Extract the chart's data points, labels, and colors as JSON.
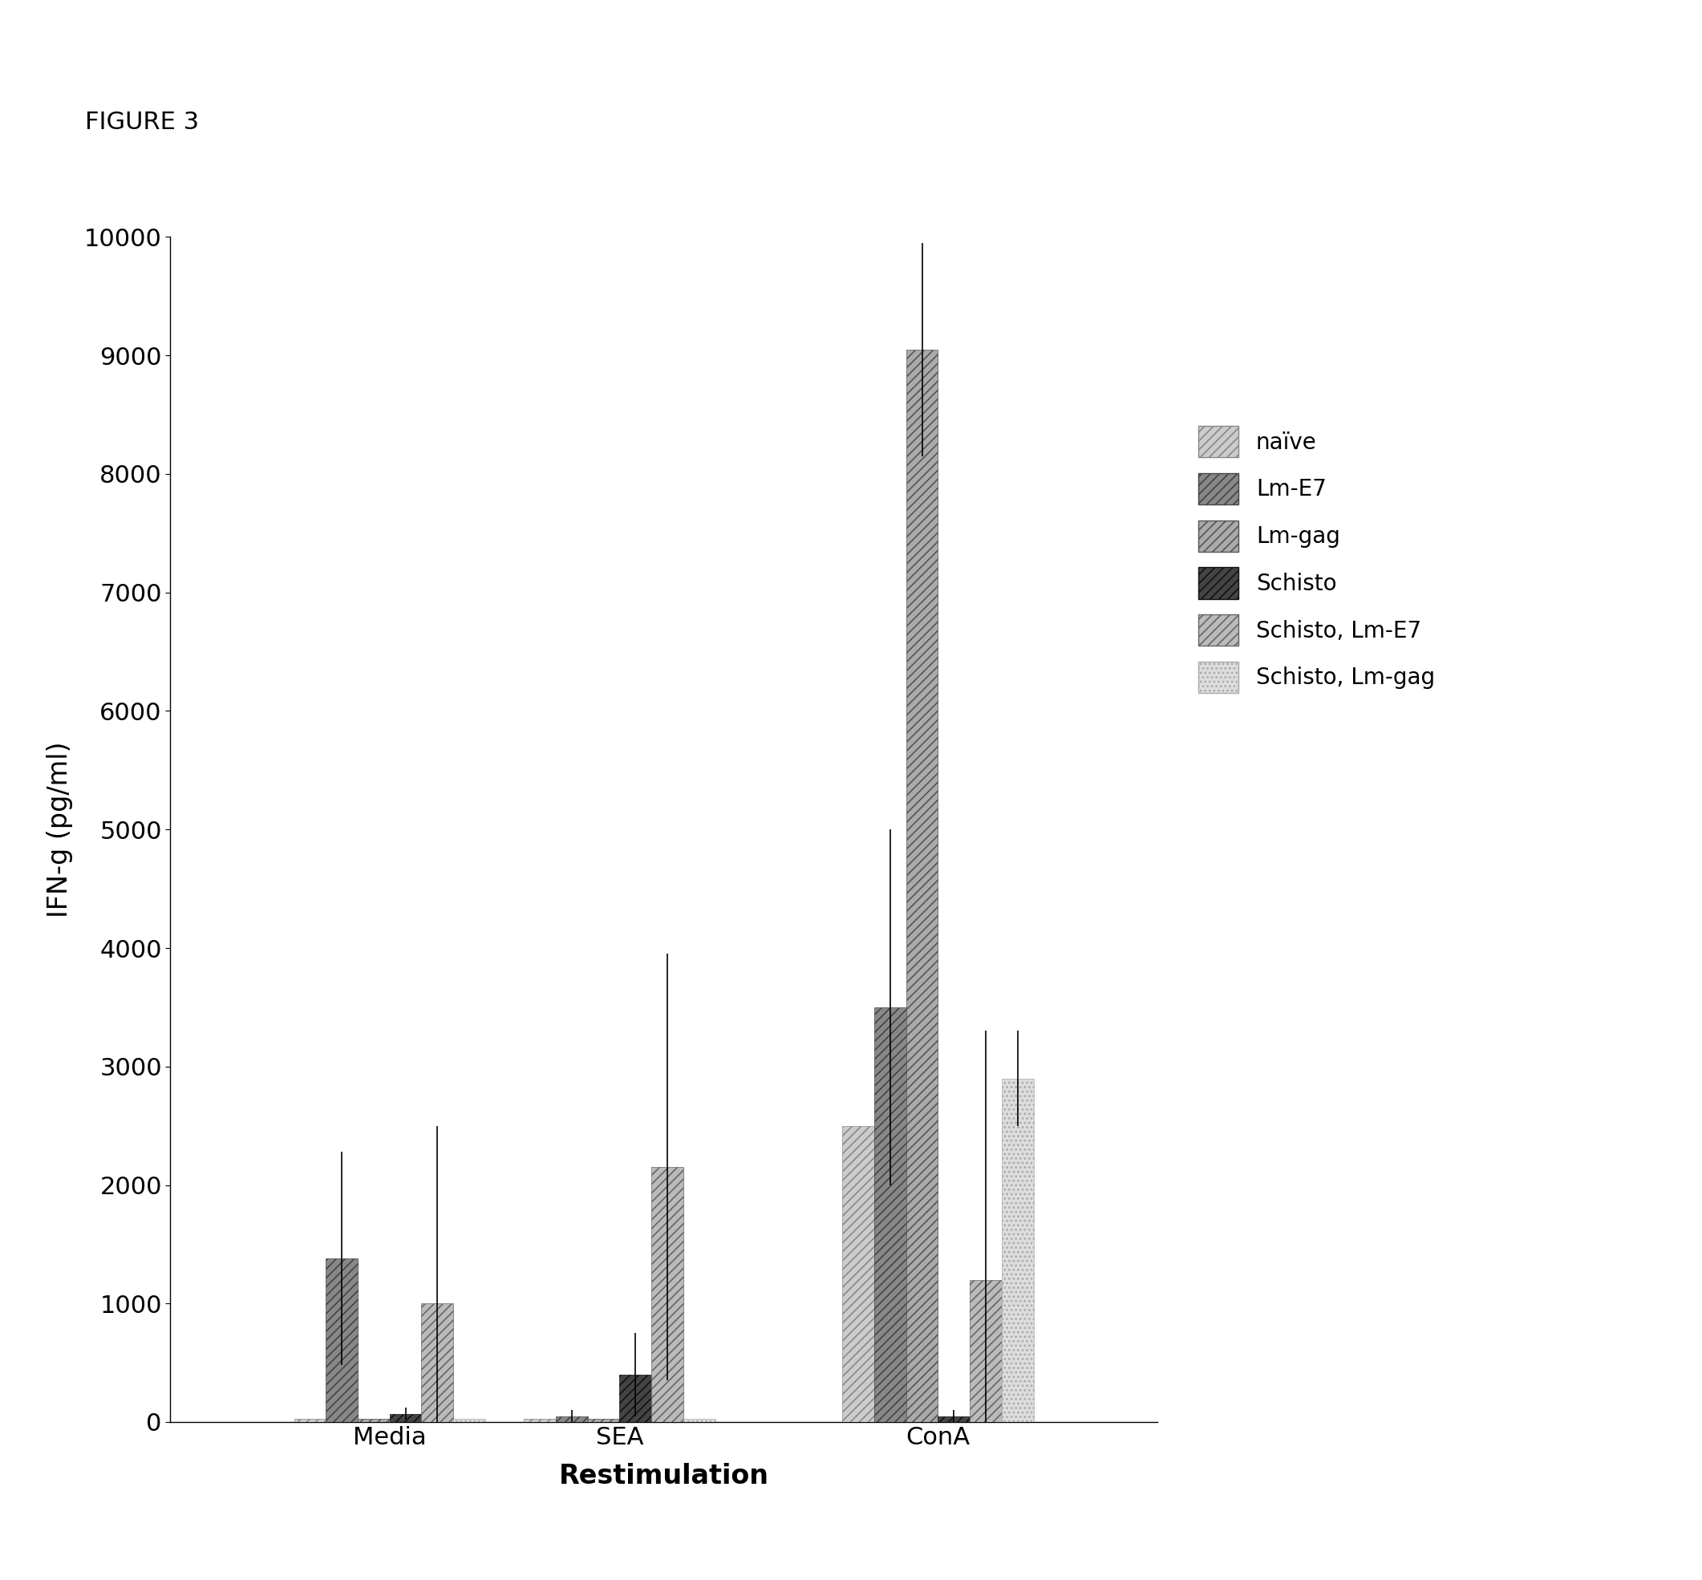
{
  "title": "FIGURE 3",
  "xlabel": "Restimulation",
  "ylabel": "IFN-g (pg/ml)",
  "categories": [
    "Media",
    "SEA",
    "ConA"
  ],
  "series": [
    {
      "name": "naïve",
      "values": [
        30,
        30,
        2500
      ],
      "errors": [
        0,
        0,
        0
      ]
    },
    {
      "name": "Lm-E7",
      "values": [
        1380,
        50,
        3500
      ],
      "errors": [
        900,
        50,
        1500
      ]
    },
    {
      "name": "Lm-gag",
      "values": [
        30,
        30,
        9050
      ],
      "errors": [
        0,
        0,
        900
      ]
    },
    {
      "name": "Schisto",
      "values": [
        70,
        400,
        50
      ],
      "errors": [
        50,
        350,
        50
      ]
    },
    {
      "name": "Schisto, Lm-E7",
      "values": [
        1000,
        2150,
        1200
      ],
      "errors": [
        1500,
        1800,
        2100
      ]
    },
    {
      "name": "Schisto, Lm-gag",
      "values": [
        30,
        30,
        2900
      ],
      "errors": [
        0,
        0,
        400
      ]
    }
  ],
  "ylim": [
    0,
    10000
  ],
  "yticks": [
    0,
    1000,
    2000,
    3000,
    4000,
    5000,
    6000,
    7000,
    8000,
    9000,
    10000
  ],
  "group_positions": [
    0.35,
    1.0,
    1.9
  ],
  "bar_width": 0.09,
  "hatch_styles": [
    {
      "hatch": "///",
      "facecolor": "#cccccc",
      "edgecolor": "#888888"
    },
    {
      "hatch": "///",
      "facecolor": "#888888",
      "edgecolor": "#444444"
    },
    {
      "hatch": "///",
      "facecolor": "#aaaaaa",
      "edgecolor": "#555555"
    },
    {
      "hatch": "///",
      "facecolor": "#444444",
      "edgecolor": "#111111"
    },
    {
      "hatch": "///",
      "facecolor": "#bbbbbb",
      "edgecolor": "#666666"
    },
    {
      "hatch": "...",
      "facecolor": "#dddddd",
      "edgecolor": "#aaaaaa"
    }
  ],
  "background_color": "#ffffff",
  "figure_label": "FIGURE 3"
}
